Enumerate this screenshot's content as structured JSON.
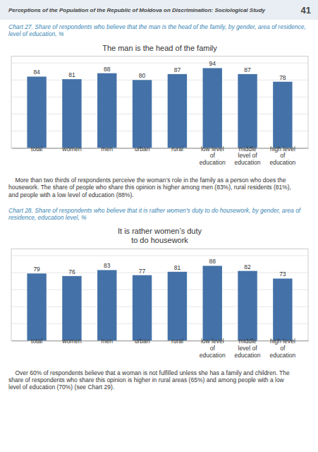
{
  "page_header": "Perceptions of the Population of the Republic of Moldova on Discrimination: Sociological Study",
  "page_number": "41",
  "chart_data": [
    {
      "type": "bar",
      "caption": "Chart 27. Share of respondents who believe that the man is the head of the family, by gender, area of residence,\nlevel of education, %",
      "title": "The man is the head of the family",
      "categories": [
        "total",
        "women",
        "men",
        "urban",
        "rural",
        "low level\nof\neducation",
        "middle\nlevel of\neducation",
        "high level\nof\neducation"
      ],
      "values": [
        84,
        81,
        88,
        80,
        87,
        94,
        87,
        78
      ],
      "color": "#4472a8",
      "ylim": [
        0,
        108
      ],
      "yticks": [
        20,
        40,
        60,
        80,
        100
      ],
      "grid": true,
      "data_labels": true,
      "tick_labels": "x",
      "text": "    More than two thirds of respondents perceive the woman’s role in the family as a person who does the\nhousework. The share of people who share this opinion is higher among men (83%), rural residents (81%),\nand people with a low level of education (88%)."
    },
    {
      "type": "bar",
      "caption": "Chart 28. Share of respondents who believe that it is rather women’s duty to do housework, by gender, area of\nresidence, education level, %",
      "title": "It is rather women’s duty\nto do housework",
      "categories": [
        "total",
        "women",
        "men",
        "urban",
        "rural",
        "low level\nof\neducation",
        "middle\nlevel of\neducation",
        "high level\nof\neducation"
      ],
      "values": [
        79,
        76,
        83,
        77,
        81,
        88,
        82,
        73
      ],
      "color": "#4472a8",
      "ylim": [
        0,
        108
      ],
      "yticks": [
        20,
        40,
        60,
        80,
        100
      ],
      "grid": true,
      "data_labels": true,
      "tick_labels": "x",
      "text": "    Over 60% of respondents believe that a woman is not fulfilled unless she has a family and children. The\nshare of respondents who share this opinion is higher in rural areas (65%) and among people with a low\nlevel of education (70%) (see Chart 29)."
    }
  ]
}
